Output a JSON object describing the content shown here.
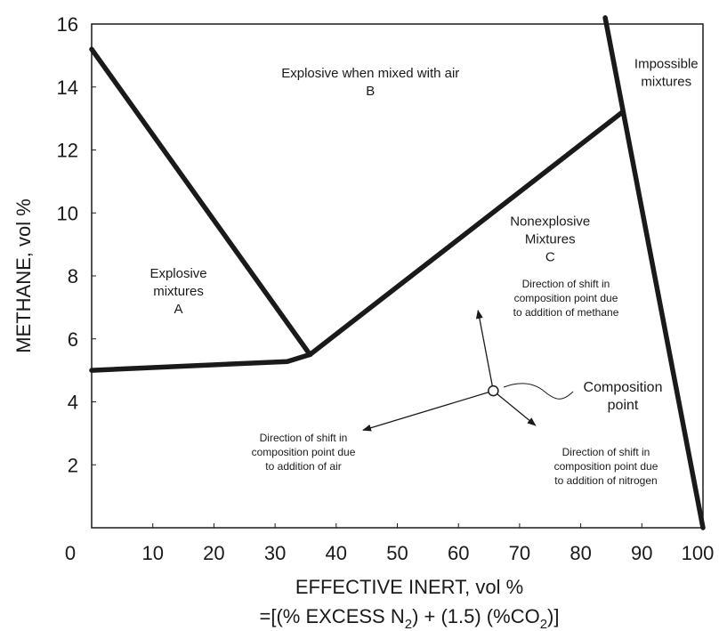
{
  "chart_data": {
    "type": "diagram",
    "xlim": [
      0,
      100
    ],
    "ylim": [
      0,
      16
    ],
    "x_ticks": [
      0,
      10,
      20,
      30,
      40,
      50,
      60,
      70,
      80,
      90,
      100
    ],
    "y_ticks": [
      2,
      4,
      6,
      8,
      10,
      12,
      14,
      16
    ],
    "ylabel": "METHANE, vol %",
    "xlabel": "EFFECTIVE INERT, vol %",
    "xlabel_formula": {
      "prefix": "=[(% EXCESS N",
      "sub1": "2",
      "middle": ") + (1.5) (%CO",
      "sub2": "2",
      "suffix": ")]"
    },
    "boundary_lines": [
      {
        "name": "upper-explosive-limit",
        "points": [
          [
            0,
            15.2
          ],
          [
            35.7,
            5.5
          ]
        ]
      },
      {
        "name": "lower-explosive-limit",
        "points": [
          [
            0,
            5.0
          ],
          [
            32,
            5.28
          ],
          [
            35.7,
            5.5
          ]
        ]
      },
      {
        "name": "nose-line",
        "points": [
          [
            35.7,
            5.5
          ],
          [
            86.8,
            13.2
          ]
        ]
      },
      {
        "name": "impossible-boundary",
        "points": [
          [
            84,
            16.2
          ],
          [
            100,
            0
          ]
        ]
      }
    ],
    "regions": [
      {
        "lines": [
          "Explosive when mixed with air",
          "B"
        ],
        "x": 45.6,
        "y": 14.3
      },
      {
        "lines": [
          "Impossible",
          "mixtures"
        ],
        "x": 94,
        "y": 14.6
      },
      {
        "lines": [
          "Nonexplosive",
          "Mixtures",
          "C"
        ],
        "x": 75,
        "y": 9.6
      },
      {
        "lines": [
          "Explosive",
          "mixtures",
          "A"
        ],
        "x": 14.2,
        "y": 7.95
      }
    ],
    "composition_point": {
      "x": 65.7,
      "y": 4.35,
      "label_lines": [
        "Composition",
        "point"
      ]
    },
    "shift_arrows": [
      {
        "to": [
          63.2,
          6.9
        ],
        "label_lines": [
          "Direction of shift in",
          "composition point due",
          "to addition of methane"
        ]
      },
      {
        "to": [
          44.4,
          3.1
        ],
        "label_lines": [
          "Direction of shift in",
          "composition point due",
          "to addition of air"
        ]
      },
      {
        "to": [
          72.6,
          3.25
        ],
        "label_lines": [
          "Direction of shift in",
          "composition point due",
          "to addition of nitrogen"
        ]
      }
    ]
  }
}
